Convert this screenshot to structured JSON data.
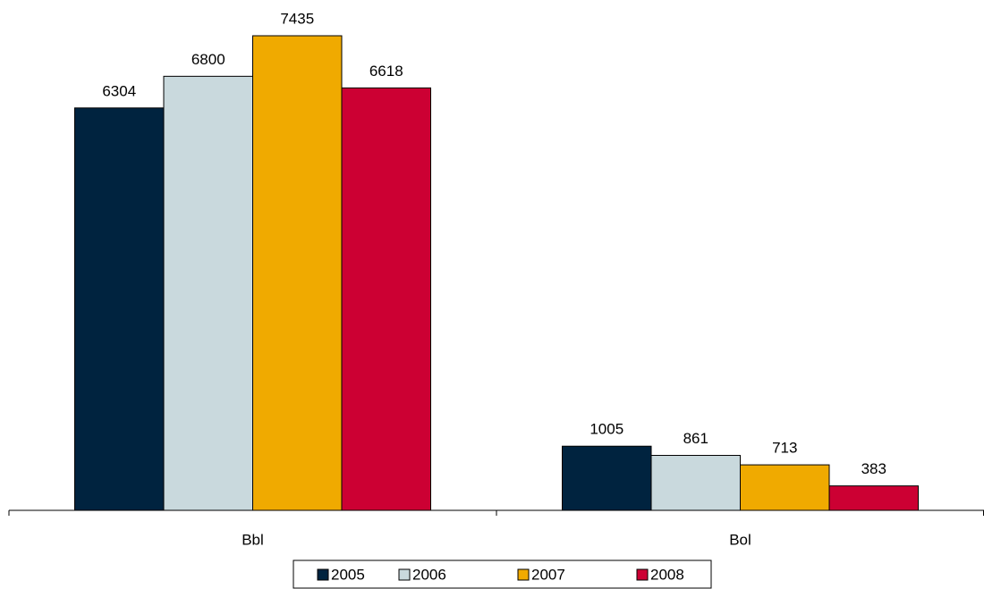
{
  "chart_data": {
    "type": "bar",
    "categories": [
      "Bbl",
      "Bol"
    ],
    "series": [
      {
        "name": "2005",
        "color": "#00233f",
        "values": [
          6304,
          1005
        ]
      },
      {
        "name": "2006",
        "color": "#c9d9dd",
        "values": [
          6800,
          861
        ]
      },
      {
        "name": "2007",
        "color": "#f0aa00",
        "values": [
          7435,
          713
        ]
      },
      {
        "name": "2008",
        "color": "#cc0033",
        "values": [
          6618,
          383
        ]
      }
    ]
  }
}
